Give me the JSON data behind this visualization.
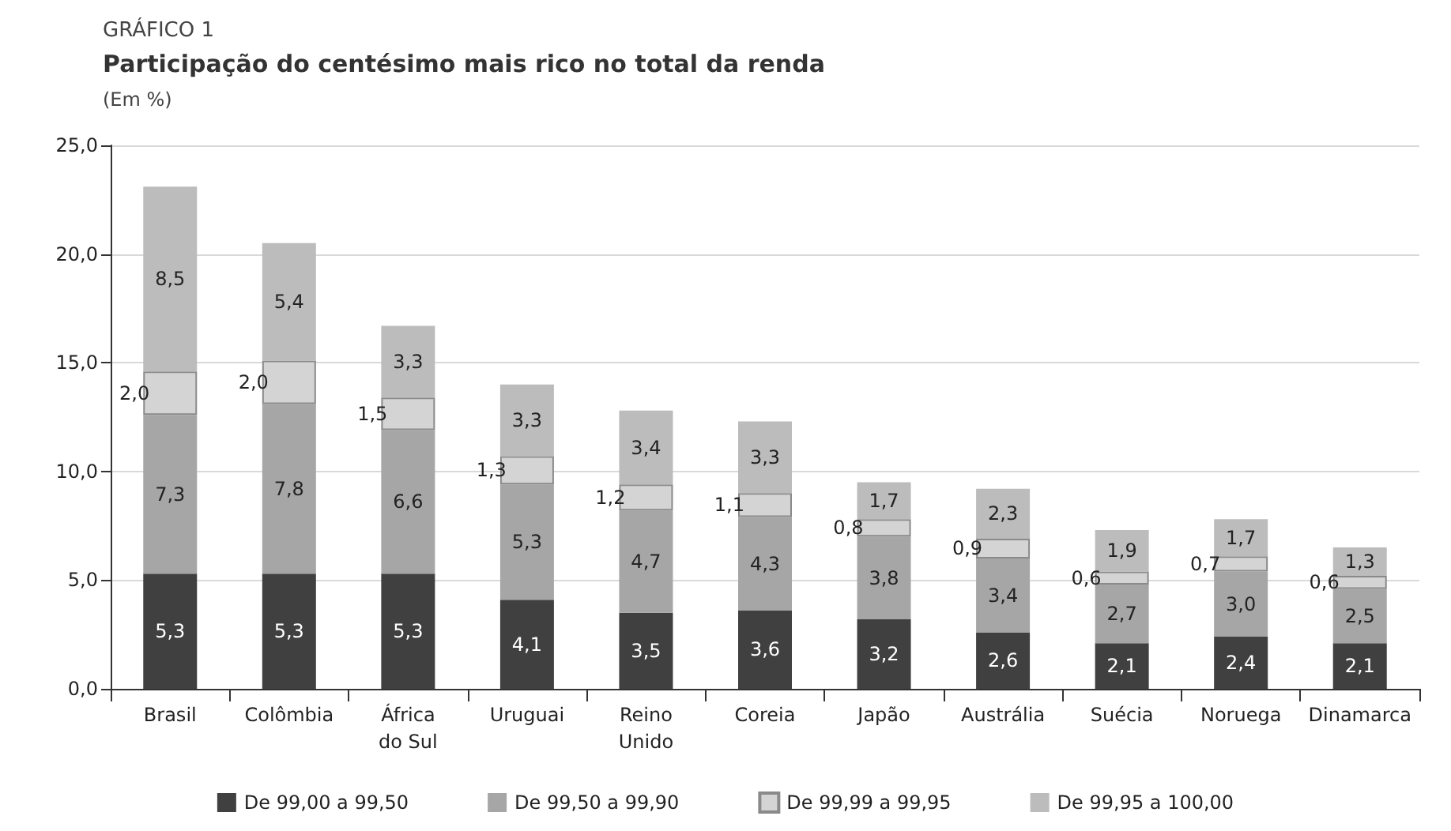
{
  "chart_data": {
    "type": "bar",
    "stacked": true,
    "annotations": [
      "GRÁFICO 1"
    ],
    "title": "Participação do centésimo mais rico no total da renda",
    "subtitle": "(Em %)",
    "categories": [
      "Brasil",
      "Colômbia",
      "África\ndo Sul",
      "Uruguai",
      "Reino\nUnido",
      "Coreia",
      "Japão",
      "Austrália",
      "Suécia",
      "Noruega",
      "Dinamarca"
    ],
    "series": [
      {
        "name": "De 99,00 a 99,50",
        "color": "#404040",
        "values": [
          5.3,
          5.3,
          5.3,
          4.1,
          3.5,
          3.6,
          3.2,
          2.6,
          2.1,
          2.4,
          2.1
        ],
        "value_labels": [
          "5,3",
          "5,3",
          "5,3",
          "4,1",
          "3,5",
          "3,6",
          "3,2",
          "2,6",
          "2,1",
          "2,4",
          "2,1"
        ]
      },
      {
        "name": "De 99,50 a 99,90",
        "color": "#a6a6a6",
        "values": [
          7.3,
          7.8,
          6.6,
          5.3,
          4.7,
          4.3,
          3.8,
          3.4,
          2.7,
          3.0,
          2.5
        ],
        "value_labels": [
          "7,3",
          "7,8",
          "6,6",
          "5,3",
          "4,7",
          "4,3",
          "3,8",
          "3,4",
          "2,7",
          "3,0",
          "2,5"
        ]
      },
      {
        "name": "De 99,99 a 99,95",
        "color": "#d4d4d4",
        "values": [
          2.0,
          2.0,
          1.5,
          1.3,
          1.2,
          1.1,
          0.8,
          0.9,
          0.6,
          0.7,
          0.6
        ],
        "value_labels": [
          "2,0",
          "2,0",
          "1,5",
          "1,3",
          "1,2",
          "1,1",
          "0,8",
          "0,9",
          "0,6",
          "0,7",
          "0,6"
        ]
      },
      {
        "name": "De 99,95 a 100,00",
        "color": "#bcbcbc",
        "values": [
          8.5,
          5.4,
          3.3,
          3.3,
          3.4,
          3.3,
          1.7,
          2.3,
          1.9,
          1.7,
          1.3
        ],
        "value_labels": [
          "8,5",
          "5,4",
          "3,3",
          "3,3",
          "3,4",
          "3,3",
          "1,7",
          "2,3",
          "1,9",
          "1,7",
          "1,3"
        ]
      }
    ],
    "ylim": [
      0,
      25
    ],
    "yticks": [
      {
        "value": 0,
        "label": "0,0"
      },
      {
        "value": 5,
        "label": "5,0"
      },
      {
        "value": 10,
        "label": "10,0"
      },
      {
        "value": 15,
        "label": "15,0"
      },
      {
        "value": 20,
        "label": "20,0"
      },
      {
        "value": 25,
        "label": "25,0"
      }
    ],
    "grid": "y",
    "legend": "bottom"
  }
}
